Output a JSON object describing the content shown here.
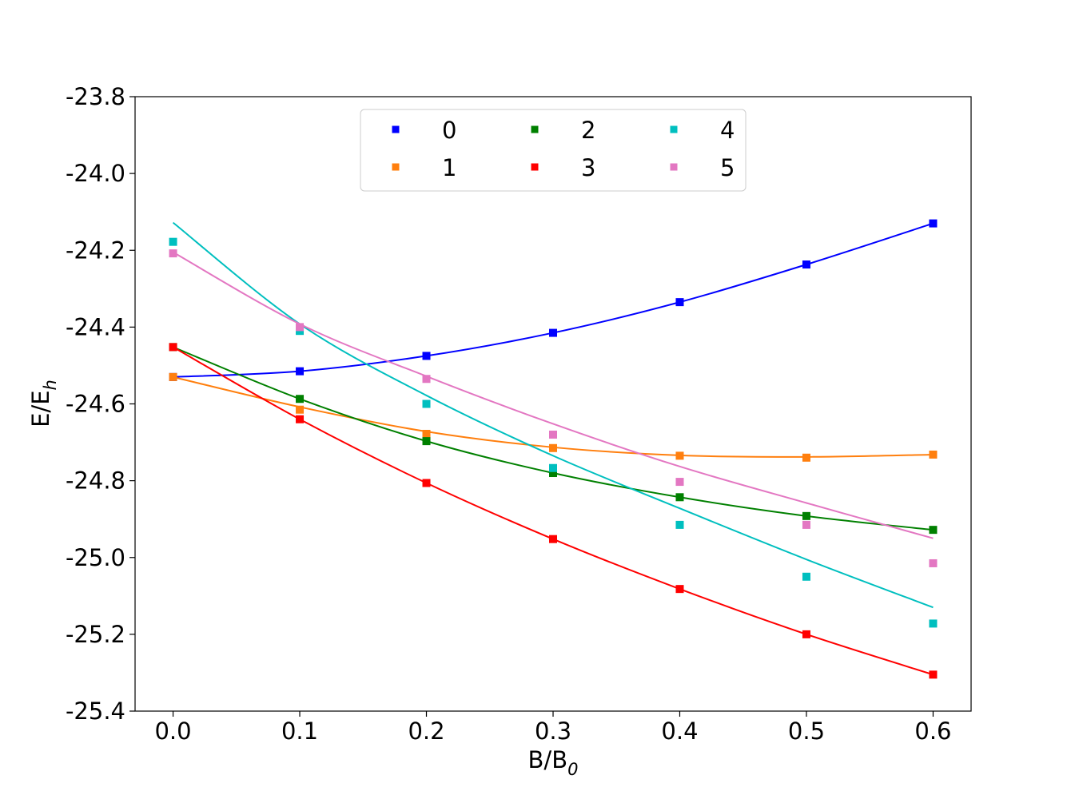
{
  "chart_data": {
    "type": "scatter",
    "xlabel": "B/B",
    "xlabel_sub": "0",
    "ylabel": "E/E",
    "ylabel_sub": "h",
    "xlim": [
      -0.03,
      0.63
    ],
    "ylim": [
      -25.4,
      -23.8
    ],
    "xticks": [
      0.0,
      0.1,
      0.2,
      0.3,
      0.4,
      0.5,
      0.6
    ],
    "xtick_labels": [
      "0.0",
      "0.1",
      "0.2",
      "0.3",
      "0.4",
      "0.5",
      "0.6"
    ],
    "yticks": [
      -23.8,
      -24.0,
      -24.2,
      -24.4,
      -24.6,
      -24.8,
      -25.0,
      -25.2,
      -25.4
    ],
    "ytick_labels": [
      "-23.8",
      "-24.0",
      "-24.2",
      "-24.4",
      "-24.6",
      "-24.8",
      "-25.0",
      "-25.2",
      "-25.4"
    ],
    "grid": false,
    "legend_position": "top-center",
    "legend_columns": 3,
    "x": [
      0.0,
      0.1,
      0.2,
      0.3,
      0.4,
      0.5,
      0.6
    ],
    "series": [
      {
        "name": "0",
        "color": "#0000ff",
        "points": [
          -24.53,
          -24.515,
          -24.475,
          -24.415,
          -24.335,
          -24.237,
          -24.13
        ],
        "fit": [
          -24.53,
          -24.515,
          -24.475,
          -24.415,
          -24.335,
          -24.237,
          -24.13
        ]
      },
      {
        "name": "1",
        "color": "#ff7f0e",
        "points": [
          -24.53,
          -24.615,
          -24.678,
          -24.715,
          -24.735,
          -24.74,
          -24.732
        ],
        "fit": [
          -24.53,
          -24.608,
          -24.672,
          -24.713,
          -24.734,
          -24.738,
          -24.732
        ]
      },
      {
        "name": "2",
        "color": "#008000",
        "points": [
          -24.452,
          -24.587,
          -24.697,
          -24.78,
          -24.843,
          -24.892,
          -24.928
        ],
        "fit": [
          -24.452,
          -24.587,
          -24.697,
          -24.78,
          -24.843,
          -24.892,
          -24.928
        ]
      },
      {
        "name": "3",
        "color": "#ff0000",
        "points": [
          -24.452,
          -24.64,
          -24.806,
          -24.952,
          -25.082,
          -25.2,
          -25.305
        ],
        "fit": [
          -24.452,
          -24.64,
          -24.806,
          -24.952,
          -25.082,
          -25.2,
          -25.305
        ]
      },
      {
        "name": "4",
        "color": "#00bfbf",
        "points": [
          -24.178,
          -24.41,
          -24.6,
          -24.767,
          -24.915,
          -25.05,
          -25.172
        ],
        "fit": [
          -24.128,
          -24.392,
          -24.578,
          -24.735,
          -24.872,
          -25.005,
          -25.13
        ]
      },
      {
        "name": "5",
        "color": "#e377c2",
        "points": [
          -24.208,
          -24.4,
          -24.535,
          -24.68,
          -24.803,
          -24.915,
          -25.015
        ],
        "fit": [
          -24.205,
          -24.392,
          -24.528,
          -24.652,
          -24.763,
          -24.858,
          -24.95
        ]
      }
    ]
  }
}
